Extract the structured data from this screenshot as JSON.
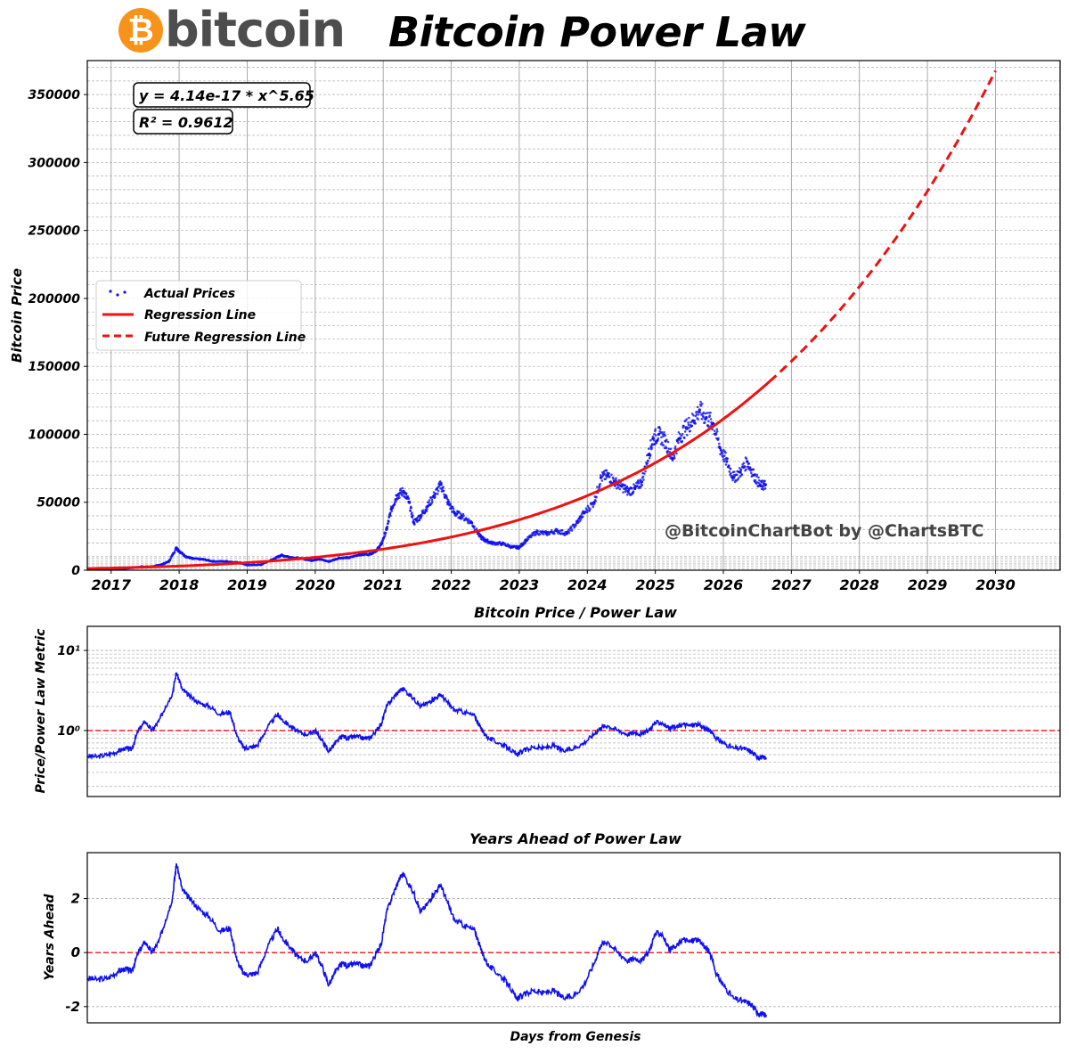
{
  "header": {
    "logo_symbol": "₿",
    "logo_text": "bitcoin",
    "title": "Bitcoin Power Law"
  },
  "colors": {
    "regression": "#ee1111",
    "prices": "#1010ee",
    "grid": "#b0b0b0",
    "brand_orange": "#f7931a"
  },
  "chart_data": [
    {
      "type": "scatter",
      "title": "",
      "xlabel": "",
      "ylabel": "Bitcoin Price",
      "xlim": [
        2016.65,
        2030.95
      ],
      "ylim": [
        0,
        375000
      ],
      "x_ticks": [
        "2017",
        "2018",
        "2019",
        "2020",
        "2021",
        "2022",
        "2023",
        "2024",
        "2025",
        "2026",
        "2027",
        "2028",
        "2029",
        "2030"
      ],
      "y_ticks": [
        "0",
        "50000",
        "100000",
        "150000",
        "200000",
        "250000",
        "300000",
        "350000"
      ],
      "grid": true,
      "legend_position": "center-left",
      "annotations": [
        "y = 4.14e-17 * x^5.65",
        "R² = 0.9612"
      ],
      "watermark": "@BitcoinChartBot by @ChartsBTC",
      "series": [
        {
          "name": "Actual Prices",
          "style": "scatter",
          "x": [
            2016.65,
            2016.9,
            2017.2,
            2017.45,
            2017.6,
            2017.75,
            2017.85,
            2017.96,
            2018.0,
            2018.1,
            2018.2,
            2018.35,
            2018.5,
            2018.7,
            2018.9,
            2019.0,
            2019.2,
            2019.4,
            2019.5,
            2019.6,
            2019.8,
            2019.95,
            2020.05,
            2020.2,
            2020.35,
            2020.5,
            2020.65,
            2020.8,
            2020.9,
            2020.97,
            2021.05,
            2021.12,
            2021.2,
            2021.3,
            2021.38,
            2021.45,
            2021.55,
            2021.65,
            2021.75,
            2021.85,
            2021.95,
            2022.05,
            2022.15,
            2022.3,
            2022.42,
            2022.5,
            2022.6,
            2022.75,
            2022.9,
            2023.0,
            2023.1,
            2023.25,
            2023.4,
            2023.55,
            2023.7,
            2023.85,
            2023.95,
            2024.1,
            2024.2,
            2024.3,
            2024.4,
            2024.5,
            2024.6,
            2024.7,
            2024.8,
            2024.9,
            2024.97,
            2025.05,
            2025.15,
            2025.25,
            2025.35,
            2025.45,
            2025.55,
            2025.65,
            2025.75,
            2025.85,
            2025.95,
            2026.05,
            2026.15,
            2026.25,
            2026.35,
            2026.45,
            2026.55,
            2026.62
          ],
          "y": [
            600,
            750,
            1100,
            2600,
            2600,
            4300,
            6500,
            16500,
            14000,
            10000,
            8500,
            8000,
            6500,
            6500,
            5500,
            3800,
            4000,
            8500,
            11000,
            10000,
            8500,
            7200,
            8300,
            6400,
            9000,
            9200,
            11500,
            11800,
            14500,
            19000,
            30000,
            45000,
            55000,
            58000,
            50000,
            35000,
            40000,
            47000,
            55000,
            63000,
            50000,
            42000,
            40000,
            35000,
            25000,
            22000,
            20000,
            19500,
            17000,
            16800,
            22000,
            28000,
            27000,
            29000,
            27000,
            35000,
            42000,
            50000,
            68000,
            70000,
            65000,
            62000,
            58000,
            60000,
            65000,
            85000,
            97000,
            100000,
            95000,
            82000,
            97000,
            105000,
            110000,
            118000,
            112000,
            108000,
            90000,
            80000,
            68000,
            72000,
            80000,
            70000,
            62000,
            63000
          ]
        },
        {
          "name": "Regression Line",
          "style": "solid",
          "x_range": [
            2016.65,
            2026.68
          ]
        },
        {
          "name": "Future Regression Line",
          "style": "dashed",
          "x_range": [
            2026.68,
            2030.0
          ]
        }
      ]
    },
    {
      "type": "line",
      "title": "Bitcoin Price / Power Law",
      "xlabel": "",
      "ylabel": "Price/Power Law Metric",
      "yscale": "log",
      "ylim": [
        0.15,
        20
      ],
      "y_ticks": [
        "10¹",
        "10⁰"
      ],
      "reference_line": 1,
      "grid": true,
      "x": [
        2016.65,
        2016.8,
        2016.95,
        2017.1,
        2017.2,
        2017.3,
        2017.4,
        2017.5,
        2017.6,
        2017.7,
        2017.8,
        2017.9,
        2017.96,
        2018.05,
        2018.15,
        2018.3,
        2018.45,
        2018.6,
        2018.75,
        2018.85,
        2018.95,
        2019.05,
        2019.15,
        2019.3,
        2019.45,
        2019.5,
        2019.6,
        2019.75,
        2019.9,
        2020.0,
        2020.1,
        2020.2,
        2020.3,
        2020.4,
        2020.5,
        2020.6,
        2020.7,
        2020.8,
        2020.9,
        2020.97,
        2021.05,
        2021.15,
        2021.25,
        2021.3,
        2021.45,
        2021.55,
        2021.65,
        2021.75,
        2021.85,
        2021.95,
        2022.05,
        2022.2,
        2022.35,
        2022.45,
        2022.55,
        2022.7,
        2022.85,
        2022.95,
        2023.05,
        2023.2,
        2023.35,
        2023.5,
        2023.65,
        2023.8,
        2023.95,
        2024.1,
        2024.2,
        2024.3,
        2024.45,
        2024.6,
        2024.7,
        2024.8,
        2024.9,
        2025.0,
        2025.1,
        2025.2,
        2025.3,
        2025.4,
        2025.5,
        2025.6,
        2025.7,
        2025.8,
        2025.9,
        2026.0,
        2026.15,
        2026.3,
        2026.4,
        2026.5,
        2026.58,
        2026.63
      ],
      "y": [
        0.48,
        0.47,
        0.5,
        0.55,
        0.6,
        0.58,
        1.0,
        1.3,
        1.0,
        1.3,
        2.0,
        2.9,
        5.3,
        3.2,
        2.7,
        2.2,
        2.0,
        1.6,
        1.7,
        0.85,
        0.6,
        0.62,
        0.65,
        1.1,
        1.6,
        1.4,
        1.2,
        0.95,
        0.9,
        1.0,
        0.75,
        0.55,
        0.7,
        0.85,
        0.8,
        0.85,
        0.8,
        0.8,
        1.0,
        1.2,
        2.0,
        2.6,
        3.2,
        3.3,
        2.5,
        2.0,
        2.2,
        2.5,
        2.8,
        2.2,
        1.8,
        1.7,
        1.5,
        1.0,
        0.8,
        0.7,
        0.6,
        0.5,
        0.55,
        0.62,
        0.6,
        0.65,
        0.55,
        0.6,
        0.7,
        0.9,
        1.1,
        1.15,
        1.0,
        0.9,
        0.95,
        0.9,
        1.0,
        1.25,
        1.25,
        1.05,
        1.1,
        1.2,
        1.15,
        1.2,
        1.1,
        1.0,
        0.8,
        0.7,
        0.6,
        0.6,
        0.55,
        0.47,
        0.46,
        0.46
      ]
    },
    {
      "type": "line",
      "title": "Years Ahead of Power Law",
      "xlabel": "Days from Genesis",
      "ylabel": "Years Ahead",
      "ylim": [
        -2.6,
        3.7
      ],
      "y_ticks": [
        "2",
        "0",
        "-2"
      ],
      "reference_line": 0,
      "grid": true,
      "x": [
        2016.65,
        2016.8,
        2016.95,
        2017.1,
        2017.2,
        2017.3,
        2017.4,
        2017.5,
        2017.6,
        2017.7,
        2017.8,
        2017.9,
        2017.96,
        2018.05,
        2018.15,
        2018.3,
        2018.45,
        2018.6,
        2018.75,
        2018.85,
        2018.95,
        2019.05,
        2019.15,
        2019.3,
        2019.45,
        2019.5,
        2019.6,
        2019.75,
        2019.9,
        2020.0,
        2020.1,
        2020.2,
        2020.3,
        2020.4,
        2020.5,
        2020.6,
        2020.7,
        2020.8,
        2020.9,
        2020.97,
        2021.05,
        2021.15,
        2021.25,
        2021.3,
        2021.45,
        2021.55,
        2021.65,
        2021.75,
        2021.85,
        2021.95,
        2022.05,
        2022.2,
        2022.35,
        2022.45,
        2022.55,
        2022.7,
        2022.85,
        2022.95,
        2023.05,
        2023.2,
        2023.35,
        2023.5,
        2023.65,
        2023.8,
        2023.95,
        2024.1,
        2024.2,
        2024.3,
        2024.45,
        2024.6,
        2024.7,
        2024.8,
        2024.9,
        2025.0,
        2025.1,
        2025.2,
        2025.3,
        2025.4,
        2025.5,
        2025.6,
        2025.7,
        2025.8,
        2025.9,
        2026.0,
        2026.15,
        2026.3,
        2026.4,
        2026.5,
        2026.58,
        2026.63
      ],
      "y": [
        -0.95,
        -1.0,
        -0.95,
        -0.7,
        -0.6,
        -0.7,
        0.0,
        0.4,
        0.0,
        0.4,
        1.2,
        2.0,
        3.3,
        2.3,
        2.0,
        1.6,
        1.3,
        0.8,
        0.9,
        -0.3,
        -0.8,
        -0.8,
        -0.75,
        0.2,
        0.9,
        0.6,
        0.3,
        -0.2,
        -0.3,
        0.0,
        -0.5,
        -1.2,
        -0.7,
        -0.4,
        -0.5,
        -0.4,
        -0.5,
        -0.5,
        0.0,
        0.3,
        1.5,
        2.2,
        2.8,
        2.9,
        2.2,
        1.5,
        1.8,
        2.2,
        2.5,
        1.8,
        1.2,
        1.0,
        0.8,
        0.0,
        -0.5,
        -0.8,
        -1.2,
        -1.7,
        -1.6,
        -1.4,
        -1.5,
        -1.4,
        -1.7,
        -1.6,
        -1.2,
        -0.4,
        0.3,
        0.4,
        0.0,
        -0.3,
        -0.2,
        -0.3,
        0.0,
        0.7,
        0.7,
        0.1,
        0.2,
        0.5,
        0.4,
        0.5,
        0.3,
        0.0,
        -0.8,
        -1.2,
        -1.7,
        -1.8,
        -1.9,
        -2.2,
        -2.3,
        -2.3
      ]
    }
  ]
}
